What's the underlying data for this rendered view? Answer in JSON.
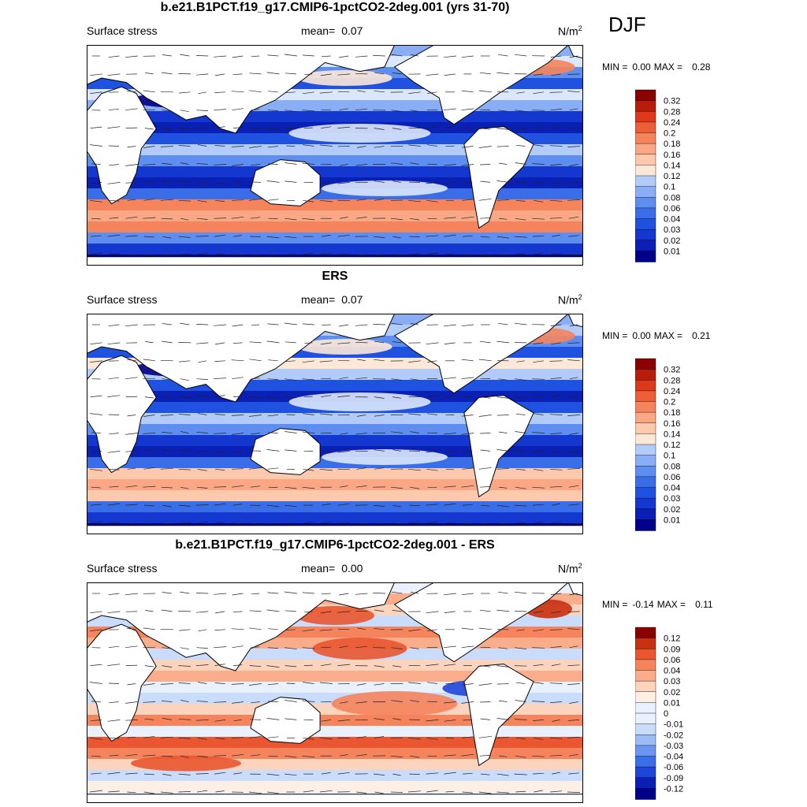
{
  "season": "DJF",
  "palettes": {
    "absolute": [
      "#00008b",
      "#0a1fb4",
      "#1337cf",
      "#1f52e0",
      "#3a6ee8",
      "#5e8ef0",
      "#8aaef5",
      "#b3cbf8",
      "#dbe8fc",
      "#fde8d8",
      "#fcc9ad",
      "#f9a785",
      "#f5845d",
      "#ee5f37",
      "#dc3a1a",
      "#b81d0c",
      "#8b0000"
    ],
    "diff": [
      "#00008b",
      "#0a1fb4",
      "#1f46d8",
      "#3a6ee8",
      "#6a95f0",
      "#9dbcf6",
      "#cadcfb",
      "#e9f1fe",
      "#fdefe3",
      "#fcd3bd",
      "#f9ad8b",
      "#f5845d",
      "#e9562f",
      "#c8300f",
      "#8b0000"
    ]
  },
  "panels": [
    {
      "title": "b.e21.B1PCT.f19_g17.CMIP6-1pctCO2-2deg.001 (yrs 31-70)",
      "left_label": "Surface stress",
      "mean_label": "mean=",
      "mean_value": "0.07",
      "units": "N/m",
      "units_sup": "2",
      "min_label": "MIN =",
      "min_value": "0.00",
      "max_label": "MAX =",
      "max_value": "0.28",
      "colorbar_labels": [
        "0.32",
        "0.28",
        "0.24",
        "0.2",
        "0.18",
        "0.16",
        "0.14",
        "0.12",
        "0.1",
        "0.08",
        "0.06",
        "0.04",
        "0.03",
        "0.02",
        "0.01"
      ]
    },
    {
      "title": "ERS",
      "left_label": "Surface stress",
      "mean_label": "mean=",
      "mean_value": "0.07",
      "units": "N/m",
      "units_sup": "2",
      "min_label": "MIN =",
      "min_value": "0.00",
      "max_label": "MAX =",
      "max_value": "0.21",
      "colorbar_labels": [
        "0.32",
        "0.28",
        "0.24",
        "0.2",
        "0.18",
        "0.16",
        "0.14",
        "0.12",
        "0.1",
        "0.08",
        "0.06",
        "0.04",
        "0.03",
        "0.02",
        "0.01"
      ]
    },
    {
      "title": "b.e21.B1PCT.f19_g17.CMIP6-1pctCO2-2deg.001 - ERS",
      "left_label": "Surface stress",
      "mean_label": "mean=",
      "mean_value": "0.00",
      "units": "N/m",
      "units_sup": "2",
      "min_label": "MIN =",
      "min_value": "-0.14",
      "max_label": "MAX =",
      "max_value": "0.11",
      "colorbar_labels": [
        "0.12",
        "0.09",
        "0.06",
        "0.04",
        "0.03",
        "0.02",
        "0.01",
        "0",
        "-0.01",
        "-0.02",
        "-0.03",
        "-0.04",
        "-0.06",
        "-0.09",
        "-0.12"
      ]
    }
  ],
  "chart_data": [
    {
      "type": "heatmap",
      "title": "b.e21.B1PCT.f19_g17.CMIP6-1pctCO2-2deg.001 (yrs 31-70)",
      "variable": "Surface stress",
      "units": "N/m2",
      "season": "DJF",
      "mean": 0.07,
      "min": 0.0,
      "max": 0.28,
      "levels": [
        0.01,
        0.02,
        0.03,
        0.04,
        0.06,
        0.08,
        0.1,
        0.12,
        0.14,
        0.16,
        0.18,
        0.2,
        0.24,
        0.28,
        0.32
      ],
      "vectors": true
    },
    {
      "type": "heatmap",
      "title": "ERS",
      "variable": "Surface stress",
      "units": "N/m2",
      "season": "DJF",
      "mean": 0.07,
      "min": 0.0,
      "max": 0.21,
      "levels": [
        0.01,
        0.02,
        0.03,
        0.04,
        0.06,
        0.08,
        0.1,
        0.12,
        0.14,
        0.16,
        0.18,
        0.2,
        0.24,
        0.28,
        0.32
      ],
      "vectors": true
    },
    {
      "type": "heatmap",
      "title": "b.e21.B1PCT.f19_g17.CMIP6-1pctCO2-2deg.001 - ERS",
      "variable": "Surface stress",
      "units": "N/m2",
      "season": "DJF",
      "mean": 0.0,
      "min": -0.14,
      "max": 0.11,
      "levels": [
        -0.12,
        -0.09,
        -0.06,
        -0.04,
        -0.03,
        -0.02,
        -0.01,
        0,
        0.01,
        0.02,
        0.03,
        0.04,
        0.06,
        0.09,
        0.12
      ],
      "vectors": true
    }
  ]
}
